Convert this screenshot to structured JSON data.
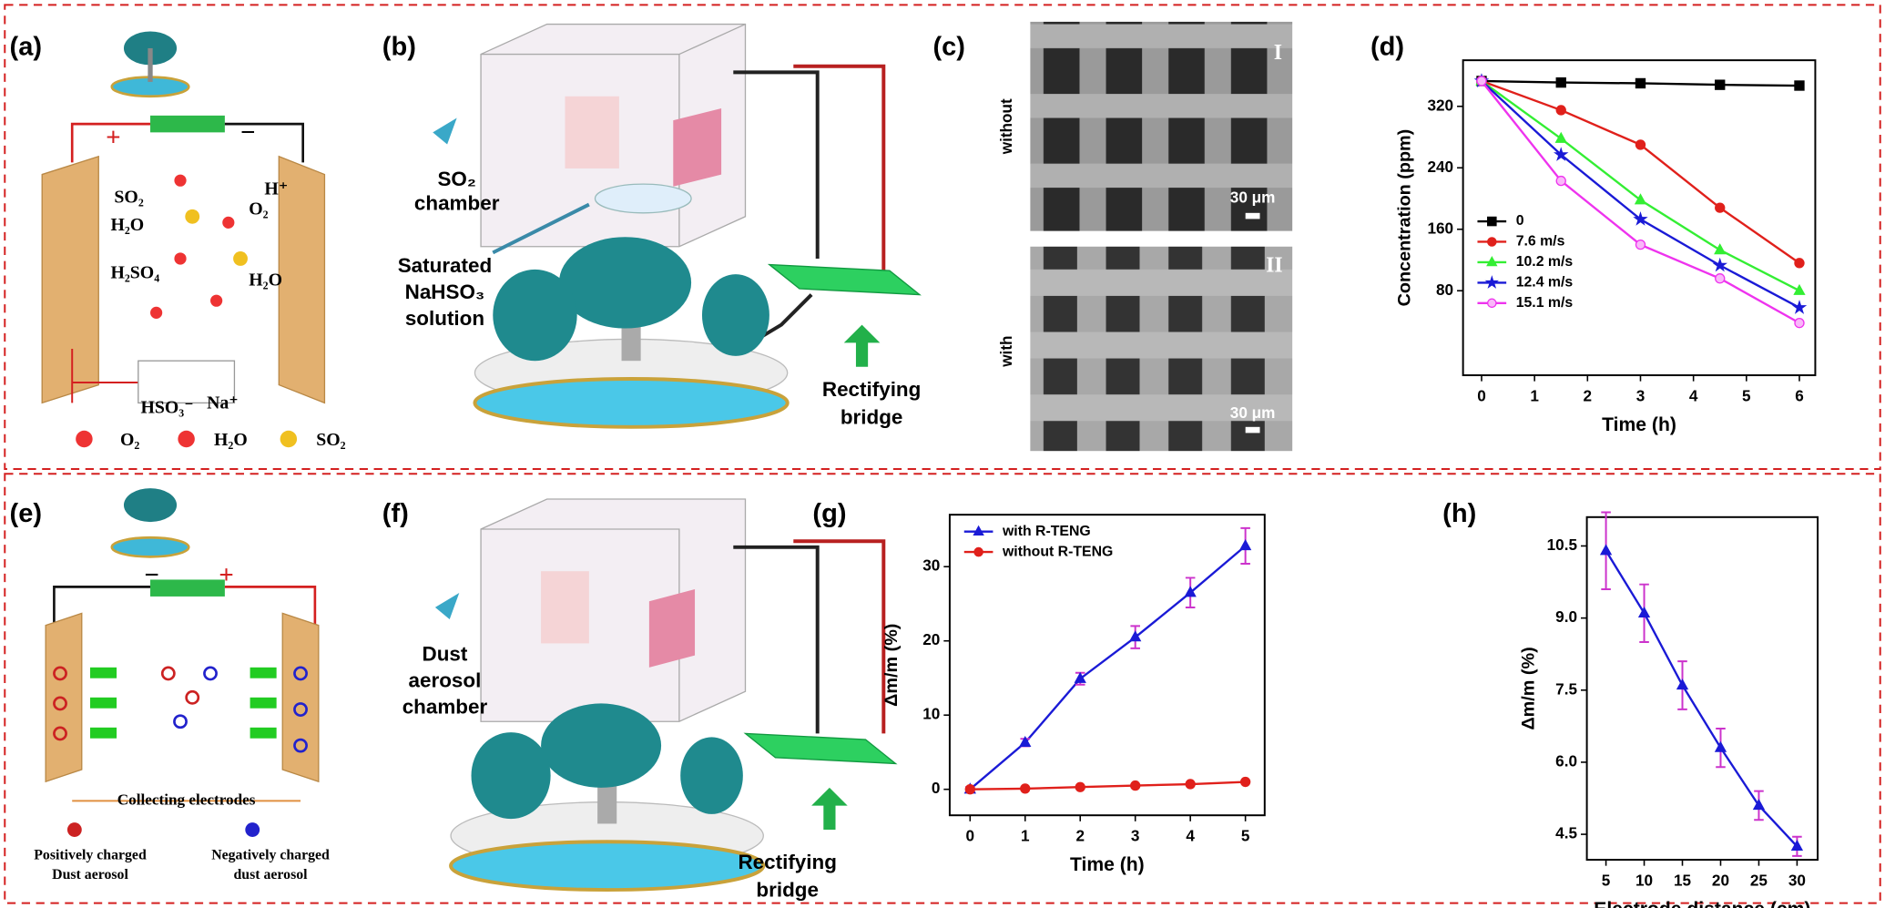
{
  "panels": [
    "(a)",
    "(b)",
    "(c)",
    "(d)",
    "(e)",
    "(f)",
    "(g)",
    "(h)"
  ],
  "panel_a": {
    "labels": [
      "SO₂",
      "H₂O",
      "H₂SO₄",
      "H⁺",
      "O₂",
      "H₂O",
      "HSO₃⁻",
      "Na⁺",
      "+",
      "−"
    ],
    "legend": [
      "O₂",
      "H₂O",
      "SO₂"
    ]
  },
  "panel_b": {
    "chamber": [
      "SO₂",
      "chamber"
    ],
    "solution": [
      "Saturated",
      "NaHSO₃",
      "solution"
    ],
    "bridge": [
      "Rectifying",
      "bridge"
    ]
  },
  "panel_c": {
    "images": [
      {
        "roman": "I",
        "label": "without",
        "scale": "30 μm"
      },
      {
        "roman": "II",
        "label": "with",
        "scale": "30 μm"
      }
    ]
  },
  "panel_e": {
    "signs": [
      "−",
      "+"
    ],
    "electrodes": "Collecting electrodes",
    "positive": [
      "Positively charged",
      "Dust aerosol"
    ],
    "negative": [
      "Negatively charged",
      "dust aerosol"
    ]
  },
  "panel_f": {
    "chamber": [
      "Dust",
      "aerosol",
      "chamber"
    ],
    "bridge": [
      "Rectifying",
      "bridge"
    ]
  },
  "chart_data": [
    {
      "type": "line",
      "xlabel": "Time (h)",
      "ylabel": "Concentration (ppm)",
      "x": [
        0,
        1.5,
        3,
        4.5,
        6
      ],
      "xlim": [
        -0.35,
        6.3
      ],
      "xticks": [
        0,
        1,
        2,
        3,
        4,
        5,
        6
      ],
      "ylim": [
        -30,
        380
      ],
      "yticks": [
        80,
        160,
        240,
        320
      ],
      "legend": "lower left",
      "series": [
        {
          "name": "0",
          "color": "#000000",
          "marker": "square",
          "values": [
            353,
            351,
            350,
            348,
            347
          ]
        },
        {
          "name": "7.6 m/s",
          "color": "#e0201b",
          "marker": "circle",
          "values": [
            353,
            315,
            270,
            188,
            116
          ]
        },
        {
          "name": "10.2 m/s",
          "color": "#33ee33",
          "marker": "triangle",
          "values": [
            353,
            278,
            198,
            133,
            80
          ]
        },
        {
          "name": "12.4 m/s",
          "color": "#1a1ad6",
          "marker": "star",
          "values": [
            353,
            257,
            173,
            113,
            58
          ]
        },
        {
          "name": "15.1 m/s",
          "color": "#ee33ee",
          "marker": "circle",
          "values": [
            353,
            223,
            140,
            96,
            38
          ]
        }
      ]
    },
    {
      "type": "line",
      "xlabel": "Time (h)",
      "ylabel": "Δm/m (%)",
      "x": [
        0,
        1,
        2,
        3,
        4,
        5
      ],
      "xlim": [
        -0.37,
        5.35
      ],
      "xticks": [
        0,
        1,
        2,
        3,
        4,
        5
      ],
      "ylim": [
        -3.5,
        37
      ],
      "yticks": [
        0,
        10,
        20,
        30
      ],
      "legend": "upper left",
      "error_color": "#cc33cc",
      "series": [
        {
          "name": "with R-TENG",
          "color": "#1a1ad6",
          "marker": "triangle",
          "values": [
            0,
            6.3,
            14.9,
            20.5,
            26.5,
            32.8
          ],
          "errors": [
            0.3,
            0.5,
            0.8,
            1.5,
            2,
            2.4
          ]
        },
        {
          "name": "without R-TENG",
          "color": "#e0201b",
          "marker": "circle",
          "values": [
            0,
            0.1,
            0.3,
            0.5,
            0.7,
            1.0
          ]
        }
      ]
    },
    {
      "type": "line",
      "xlabel": "Electrode distance (cm)",
      "ylabel": "Δm/m (%)",
      "x": [
        5,
        10,
        15,
        20,
        25,
        30
      ],
      "xlim": [
        2.5,
        32.7
      ],
      "xticks": [
        5,
        10,
        15,
        20,
        25,
        30
      ],
      "ylim": [
        3.97,
        11.1
      ],
      "yticks": [
        4.5,
        {
          "value": 6,
          "label": "6.0"
        },
        7.5,
        {
          "value": 9,
          "label": "9.0"
        },
        10.5
      ],
      "error_color": "#cc33cc",
      "series": [
        {
          "name": "Δm/m",
          "color": "#1a1ad6",
          "marker": "triangle",
          "values": [
            10.4,
            9.1,
            7.6,
            6.3,
            5.1,
            4.25
          ],
          "errors": [
            0.8,
            0.6,
            0.5,
            0.4,
            0.3,
            0.2
          ]
        }
      ]
    }
  ]
}
